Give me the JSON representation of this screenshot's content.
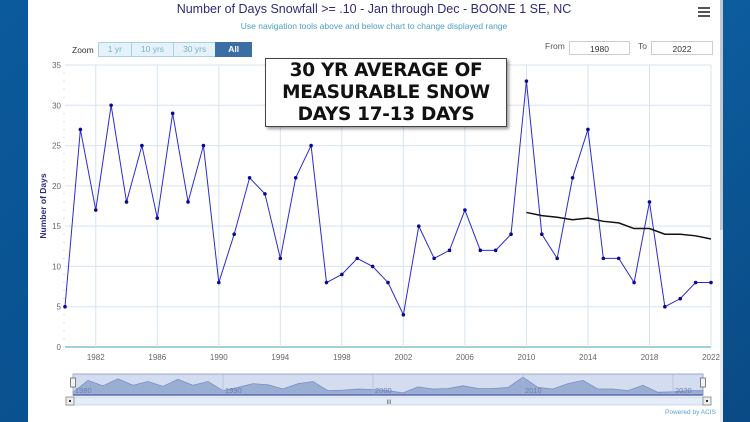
{
  "header": {
    "title": "Number of Days Snowfall >= .10 - Jan through Dec - BOONE 1 SE, NC",
    "subtitle": "Use navigation tools above and below chart to change displayed range",
    "menu_icon": "hamburger-menu-icon"
  },
  "zoom": {
    "label": "Zoom",
    "buttons": [
      {
        "label": "1 yr",
        "active": false
      },
      {
        "label": "10 yrs",
        "active": false
      },
      {
        "label": "30 yrs",
        "active": false
      },
      {
        "label": "All",
        "active": true
      }
    ]
  },
  "range": {
    "from_label": "From",
    "from_value": "1980",
    "to_label": "To",
    "to_value": "2022"
  },
  "annotation": {
    "lines": [
      "30 YR AVERAGE OF",
      "MEASURABLE SNOW",
      "DAYS 17-13 DAYS"
    ]
  },
  "navigator": {
    "labels": [
      "1980",
      "1990",
      "2000",
      "2010",
      "2020"
    ],
    "scroll_grip": "III"
  },
  "footer": {
    "credit": "Powered by ACIS"
  },
  "colors": {
    "series_line": "#2b2bd0",
    "series_marker": "#0a0a8c",
    "average_line": "#111111",
    "grid": "#d6e4f0",
    "axis": "#6ab0d0",
    "frame_blue": "#0b5a9c"
  },
  "chart_data": {
    "type": "line",
    "title": "Number of Days Snowfall >= .10 - Jan through Dec - BOONE 1 SE, NC",
    "xlabel": "",
    "ylabel": "Number of Days",
    "ylim": [
      0,
      35
    ],
    "xlim": [
      1980,
      2022
    ],
    "yticks": [
      0,
      5,
      10,
      15,
      20,
      25,
      30,
      35
    ],
    "xticks": [
      1982,
      1986,
      1990,
      1994,
      1998,
      2002,
      2006,
      2010,
      2014,
      2018,
      2022
    ],
    "grid": true,
    "legend": "none",
    "x": [
      1980,
      1981,
      1982,
      1983,
      1984,
      1985,
      1986,
      1987,
      1988,
      1989,
      1990,
      1991,
      1992,
      1993,
      1994,
      1995,
      1996,
      1997,
      1998,
      1999,
      2000,
      2001,
      2002,
      2003,
      2004,
      2005,
      2006,
      2007,
      2008,
      2009,
      2010,
      2011,
      2012,
      2013,
      2014,
      2015,
      2016,
      2017,
      2018,
      2019,
      2020,
      2021,
      2022
    ],
    "series": [
      {
        "name": "Number of Days",
        "values": [
          5,
          27,
          17,
          30,
          18,
          25,
          16,
          29,
          18,
          25,
          8,
          14,
          21,
          19,
          11,
          21,
          25,
          8,
          9,
          11,
          10,
          8,
          4,
          15,
          11,
          12,
          17,
          12,
          12,
          14,
          33,
          14,
          11,
          21,
          27,
          11,
          11,
          8,
          18,
          5,
          6,
          8,
          8
        ]
      },
      {
        "name": "30-yr Average",
        "x": [
          2010,
          2011,
          2012,
          2013,
          2014,
          2015,
          2016,
          2017,
          2018,
          2019,
          2020,
          2021,
          2022
        ],
        "values": [
          16.7,
          16.3,
          16.1,
          15.8,
          16.0,
          15.6,
          15.4,
          14.7,
          14.7,
          14.0,
          14.0,
          13.8,
          13.4
        ]
      }
    ],
    "annotations": [
      "30 YR AVERAGE OF MEASURABLE SNOW DAYS 17-13 DAYS"
    ]
  }
}
